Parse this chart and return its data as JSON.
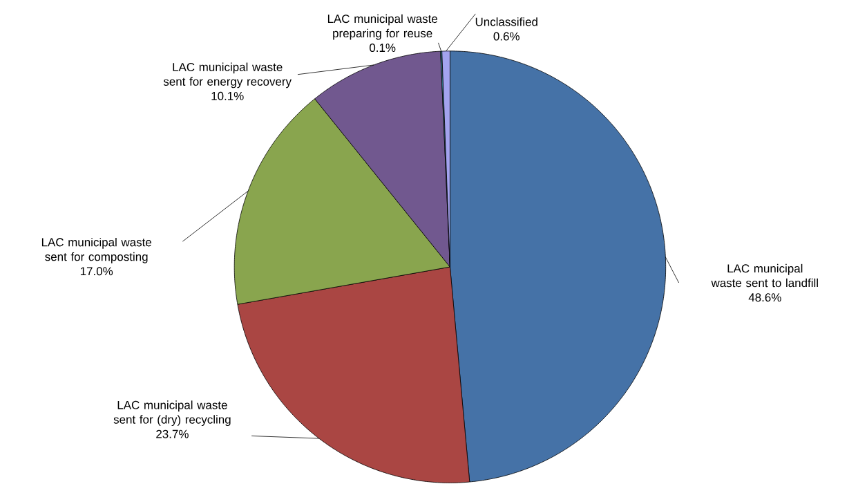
{
  "chart_data": {
    "type": "pie",
    "categories": [
      "LAC municipal waste sent to landfill",
      "LAC municipal waste sent for (dry) recycling",
      "LAC municipal waste sent for composting",
      "LAC municipal waste sent for energy recovery",
      "LAC municipal waste preparing for reuse",
      "Unclassified"
    ],
    "values": [
      48.6,
      23.7,
      17.0,
      10.1,
      0.1,
      0.6
    ],
    "colors": [
      "#4572a7",
      "#aa4643",
      "#89a54e",
      "#71588f",
      "#4198af",
      "#a3a3ef"
    ],
    "value_labels": [
      "48.6%",
      "23.7%",
      "17.0%",
      "10.1%",
      "0.1%",
      "0.6%"
    ]
  }
}
